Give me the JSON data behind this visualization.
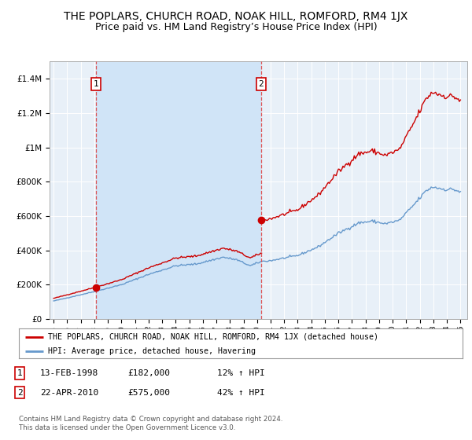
{
  "title": "THE POPLARS, CHURCH ROAD, NOAK HILL, ROMFORD, RM4 1JX",
  "subtitle": "Price paid vs. HM Land Registry’s House Price Index (HPI)",
  "title_fontsize": 10,
  "subtitle_fontsize": 9,
  "background_color": "#ffffff",
  "plot_bg_color": "#e8f0f8",
  "grid_color": "#ffffff",
  "shade_color": "#d0e4f7",
  "legend_label_red": "THE POPLARS, CHURCH ROAD, NOAK HILL, ROMFORD, RM4 1JX (detached house)",
  "legend_label_blue": "HPI: Average price, detached house, Havering",
  "footnote": "Contains HM Land Registry data © Crown copyright and database right 2024.\nThis data is licensed under the Open Government Licence v3.0.",
  "sale1_label": "1",
  "sale1_date": "13-FEB-1998",
  "sale1_price": "£182,000",
  "sale1_hpi": "12% ↑ HPI",
  "sale1_year": 1998.12,
  "sale1_value": 182000,
  "sale2_label": "2",
  "sale2_date": "22-APR-2010",
  "sale2_price": "£575,000",
  "sale2_hpi": "42% ↑ HPI",
  "sale2_year": 2010.3,
  "sale2_value": 575000,
  "red_color": "#cc0000",
  "blue_color": "#6699cc",
  "dashed_color": "#dd4444",
  "ylim": [
    0,
    1500000
  ],
  "xlim": [
    1994.7,
    2025.5
  ],
  "yticks": [
    0,
    200000,
    400000,
    600000,
    800000,
    1000000,
    1200000,
    1400000
  ],
  "ytick_labels": [
    "£0",
    "£200K",
    "£400K",
    "£600K",
    "£800K",
    "£1M",
    "£1.2M",
    "£1.4M"
  ],
  "xticks": [
    1995,
    1996,
    1997,
    1998,
    1999,
    2000,
    2001,
    2002,
    2003,
    2004,
    2005,
    2006,
    2007,
    2008,
    2009,
    2010,
    2011,
    2012,
    2013,
    2014,
    2015,
    2016,
    2017,
    2018,
    2019,
    2020,
    2021,
    2022,
    2023,
    2024,
    2025
  ]
}
